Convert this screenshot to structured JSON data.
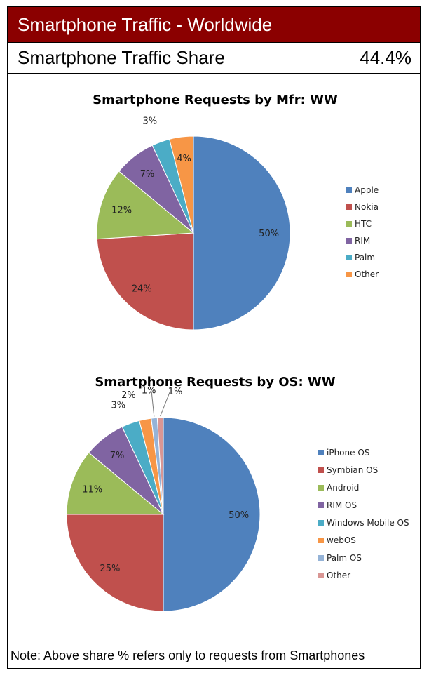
{
  "header": {
    "title": "Smartphone Traffic - Worldwide"
  },
  "share": {
    "label": "Smartphone Traffic Share",
    "value": "44.4%"
  },
  "note": "Note: Above share % refers only to requests from Smartphones",
  "chart_data": [
    {
      "type": "pie",
      "title": "Smartphone Requests by Mfr: WW",
      "legend": "right",
      "categories": [
        "Apple",
        "Nokia",
        "HTC",
        "RIM",
        "Palm",
        "Other"
      ],
      "values": [
        50,
        24,
        12,
        7,
        3,
        4
      ],
      "labels": [
        "50%",
        "24%",
        "12%",
        "7%",
        "3%",
        "4%"
      ],
      "colors": [
        "#4f81bd",
        "#c0504d",
        "#9bbb59",
        "#8064a2",
        "#4bacc6",
        "#f79646"
      ]
    },
    {
      "type": "pie",
      "title": "Smartphone Requests by OS: WW",
      "legend": "right",
      "categories": [
        "iPhone OS",
        "Symbian OS",
        "Android",
        "RIM OS",
        "Windows Mobile OS",
        "webOS",
        "Palm OS",
        "Other"
      ],
      "values": [
        50,
        25,
        11,
        7,
        3,
        2,
        1,
        1
      ],
      "labels": [
        "50%",
        "25%",
        "11%",
        "7%",
        "3%",
        "2%",
        "1%",
        "1%"
      ],
      "colors": [
        "#4f81bd",
        "#c0504d",
        "#9bbb59",
        "#8064a2",
        "#4bacc6",
        "#f79646",
        "#95b3d7",
        "#d99694"
      ]
    }
  ]
}
